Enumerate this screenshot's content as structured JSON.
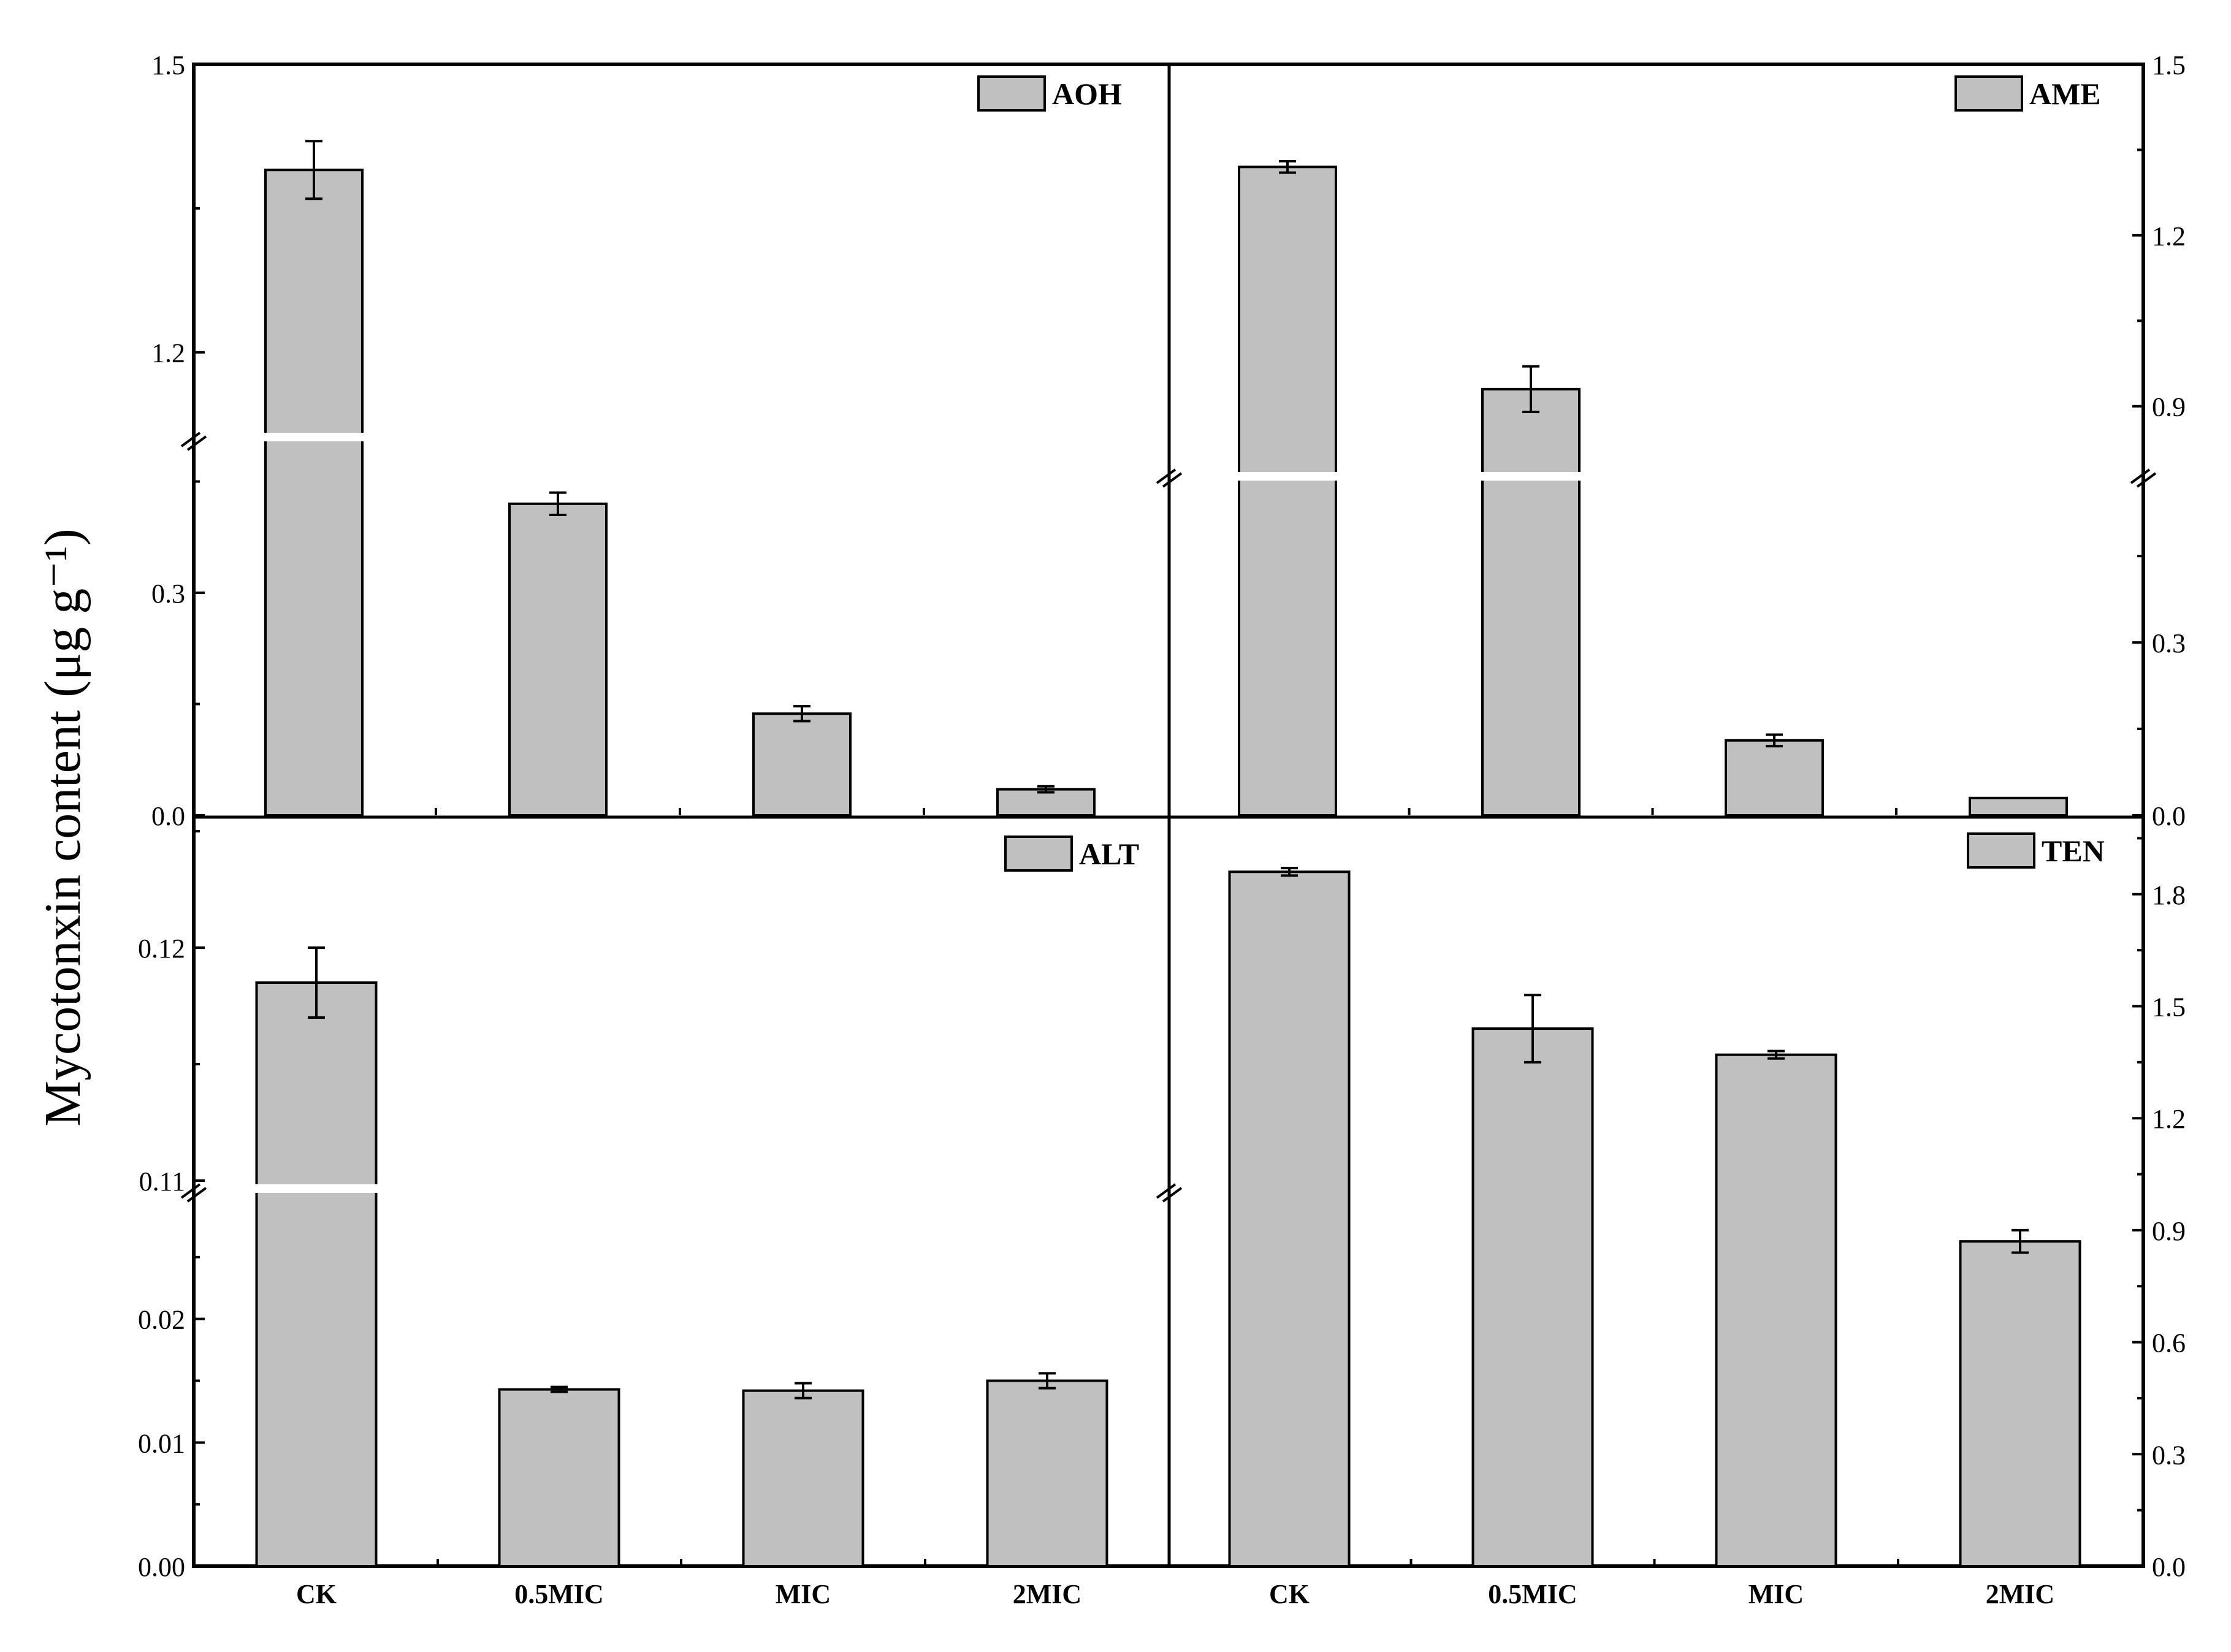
{
  "y_axis_label": "Mycotonxin content (μg g⁻¹)",
  "categories": [
    "CK",
    "0.5MIC",
    "MIC",
    "2MIC"
  ],
  "colors": {
    "bar_fill": "#c0c0c0",
    "bar_stroke": "#000000",
    "axis": "#000000",
    "background": "#ffffff"
  },
  "chart_data": [
    {
      "type": "bar",
      "legend": "AOH",
      "legend_position": "top-right",
      "axis_side": "left",
      "broken_axis": true,
      "lower_ylim": [
        0,
        0.5
      ],
      "upper_ylim": [
        1.12,
        1.5
      ],
      "lower_ticks": [
        "0.0",
        "0.3"
      ],
      "upper_ticks": [
        "1.2",
        "1.5"
      ],
      "categories": [
        "CK",
        "0.5MIC",
        "MIC",
        "2MIC"
      ],
      "values": [
        1.39,
        0.42,
        0.137,
        0.035
      ],
      "errors": [
        0.03,
        0.015,
        0.01,
        0.004
      ]
    },
    {
      "type": "bar",
      "legend": "AME",
      "legend_position": "top-right",
      "axis_side": "right",
      "broken_axis": true,
      "lower_ylim": [
        0,
        0.58
      ],
      "upper_ylim": [
        0.79,
        1.5
      ],
      "lower_ticks": [
        "0.0",
        "0.3"
      ],
      "upper_ticks": [
        "0.9",
        "1.2",
        "1.5"
      ],
      "categories": [
        "CK",
        "0.5MIC",
        "MIC",
        "2MIC"
      ],
      "values": [
        1.32,
        0.93,
        0.13,
        0.03
      ],
      "errors": [
        0.01,
        0.04,
        0.01,
        0.0
      ]
    },
    {
      "type": "bar",
      "legend": "ALT",
      "legend_position": "top-right",
      "axis_side": "left",
      "broken_axis": true,
      "lower_ylim": [
        0,
        0.03
      ],
      "upper_ylim": [
        0.11,
        0.1255
      ],
      "lower_ticks": [
        "0.00",
        "0.01",
        "0.02"
      ],
      "upper_ticks": [
        "0.11",
        "0.12"
      ],
      "categories": [
        "CK",
        "0.5MIC",
        "MIC",
        "2MIC"
      ],
      "values": [
        0.1185,
        0.0143,
        0.0142,
        0.015
      ],
      "errors": [
        0.0015,
        0.0002,
        0.0006,
        0.0006
      ]
    },
    {
      "type": "bar",
      "legend": "TEN",
      "legend_position": "top-right",
      "axis_side": "right",
      "broken_axis": false,
      "ylim": [
        0,
        2.0
      ],
      "ticks": [
        "0.0",
        "0.3",
        "0.6",
        "0.9",
        "1.2",
        "1.5",
        "1.8"
      ],
      "categories": [
        "CK",
        "0.5MIC",
        "MIC",
        "2MIC"
      ],
      "values": [
        1.86,
        1.44,
        1.37,
        0.87
      ],
      "errors": [
        0.01,
        0.09,
        0.01,
        0.03
      ]
    }
  ]
}
